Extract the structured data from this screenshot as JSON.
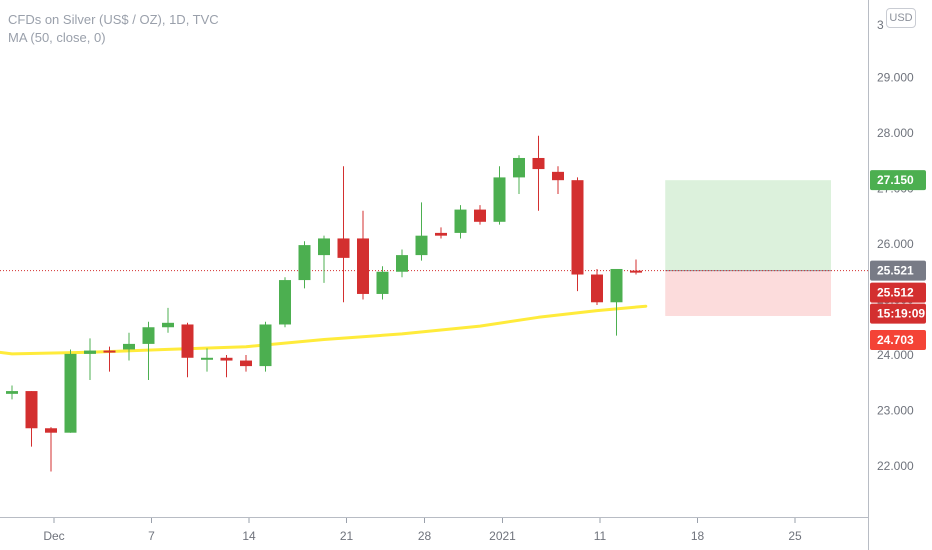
{
  "legend": {
    "title": "CFDs on Silver (US$ / OZ), 1D, TVC",
    "indicator": "MA (50, close, 0)"
  },
  "currency_badge": "USD",
  "colors": {
    "up": "#4caf50",
    "down": "#d32f2f",
    "ma": "#ffeb3b",
    "profit_zone": "#dcf1dc",
    "loss_zone": "#fcdcdc",
    "axis": "#9aa0ab"
  },
  "chart_data": {
    "type": "candlestick",
    "title": "CFDs on Silver (US$ / OZ), 1D, TVC",
    "ylim": [
      21.0,
      30.2
    ],
    "yticks": [
      {
        "value": 29.0,
        "label": "29.000"
      },
      {
        "value": 28.0,
        "label": "28.000"
      },
      {
        "value": 27.0,
        "label": "27.000"
      },
      {
        "value": 26.0,
        "label": "26.000"
      },
      {
        "value": 25.0,
        "label": "25.000"
      },
      {
        "value": 24.0,
        "label": "24.000"
      },
      {
        "value": 23.0,
        "label": "23.000"
      },
      {
        "value": 22.0,
        "label": "22.000"
      }
    ],
    "top_tick_partial": "3",
    "xticks": [
      {
        "index": 2,
        "label": "Dec"
      },
      {
        "index": 7,
        "label": "7"
      },
      {
        "index": 12,
        "label": "14"
      },
      {
        "index": 17,
        "label": "21"
      },
      {
        "index": 21,
        "label": "28"
      },
      {
        "index": 25,
        "label": "2021"
      },
      {
        "index": 30,
        "label": "11"
      },
      {
        "index": 35,
        "label": "18"
      },
      {
        "index": 40,
        "label": "25"
      }
    ],
    "candles": [
      {
        "o": 23.3,
        "h": 23.45,
        "l": 23.2,
        "c": 23.35
      },
      {
        "o": 23.35,
        "h": 23.35,
        "l": 22.35,
        "c": 22.68
      },
      {
        "o": 22.68,
        "h": 22.7,
        "l": 21.9,
        "c": 22.6
      },
      {
        "o": 22.6,
        "h": 24.1,
        "l": 22.6,
        "c": 24.02
      },
      {
        "o": 24.02,
        "h": 24.3,
        "l": 23.55,
        "c": 24.08
      },
      {
        "o": 24.08,
        "h": 24.15,
        "l": 23.7,
        "c": 24.05
      },
      {
        "o": 24.1,
        "h": 24.4,
        "l": 23.9,
        "c": 24.2
      },
      {
        "o": 24.2,
        "h": 24.6,
        "l": 23.55,
        "c": 24.5
      },
      {
        "o": 24.5,
        "h": 24.85,
        "l": 24.4,
        "c": 24.58
      },
      {
        "o": 24.55,
        "h": 24.58,
        "l": 23.6,
        "c": 23.95
      },
      {
        "o": 23.95,
        "h": 24.12,
        "l": 23.7,
        "c": 23.95
      },
      {
        "o": 23.95,
        "h": 24.0,
        "l": 23.6,
        "c": 23.9
      },
      {
        "o": 23.9,
        "h": 24.0,
        "l": 23.7,
        "c": 23.8
      },
      {
        "o": 23.8,
        "h": 24.6,
        "l": 23.7,
        "c": 24.55
      },
      {
        "o": 24.55,
        "h": 25.4,
        "l": 24.5,
        "c": 25.35
      },
      {
        "o": 25.35,
        "h": 26.05,
        "l": 25.2,
        "c": 25.98
      },
      {
        "o": 25.8,
        "h": 26.15,
        "l": 25.3,
        "c": 26.1
      },
      {
        "o": 26.1,
        "h": 27.4,
        "l": 24.95,
        "c": 25.75
      },
      {
        "o": 26.1,
        "h": 26.6,
        "l": 25.0,
        "c": 25.1
      },
      {
        "o": 25.1,
        "h": 25.6,
        "l": 25.0,
        "c": 25.5
      },
      {
        "o": 25.5,
        "h": 25.9,
        "l": 25.4,
        "c": 25.8
      },
      {
        "o": 25.8,
        "h": 26.75,
        "l": 25.7,
        "c": 26.15
      },
      {
        "o": 26.2,
        "h": 26.3,
        "l": 26.1,
        "c": 26.15
      },
      {
        "o": 26.2,
        "h": 26.7,
        "l": 26.1,
        "c": 26.62
      },
      {
        "o": 26.62,
        "h": 26.7,
        "l": 26.35,
        "c": 26.4
      },
      {
        "o": 26.4,
        "h": 27.4,
        "l": 26.35,
        "c": 27.2
      },
      {
        "o": 27.2,
        "h": 27.6,
        "l": 26.9,
        "c": 27.55
      },
      {
        "o": 27.55,
        "h": 27.95,
        "l": 26.6,
        "c": 27.35
      },
      {
        "o": 27.3,
        "h": 27.4,
        "l": 26.9,
        "c": 27.15
      },
      {
        "o": 27.15,
        "h": 27.2,
        "l": 25.15,
        "c": 25.45
      },
      {
        "o": 25.45,
        "h": 25.55,
        "l": 24.9,
        "c": 24.95
      },
      {
        "o": 24.95,
        "h": 25.55,
        "l": 24.35,
        "c": 25.55
      },
      {
        "o": 25.52,
        "h": 25.72,
        "l": 25.45,
        "c": 25.5
      }
    ],
    "moving_average": {
      "name": "MA (50, close, 0)",
      "points": [
        {
          "index": -3,
          "value": 24.15
        },
        {
          "index": 0,
          "value": 24.02
        },
        {
          "index": 4,
          "value": 24.05
        },
        {
          "index": 8,
          "value": 24.1
        },
        {
          "index": 12,
          "value": 24.15
        },
        {
          "index": 16,
          "value": 24.28
        },
        {
          "index": 20,
          "value": 24.38
        },
        {
          "index": 24,
          "value": 24.52
        },
        {
          "index": 27,
          "value": 24.68
        },
        {
          "index": 30,
          "value": 24.8
        },
        {
          "index": 32.5,
          "value": 24.88
        }
      ]
    },
    "position": {
      "start_index": 33.5,
      "end_index": 42,
      "entry": 25.521,
      "target": 27.15,
      "stop": 24.703
    },
    "price_labels": [
      {
        "value": 27.15,
        "label": "27.150",
        "color": "#4caf50"
      },
      {
        "value": 25.521,
        "label": "25.521",
        "color": "#787b86"
      },
      {
        "value": 25.512,
        "label": "25.512",
        "color": "#d32f2f"
      },
      {
        "value": null,
        "label": "15:19:09",
        "color": "#d32f2f"
      },
      {
        "value": 24.703,
        "label": "24.703",
        "color": "#f44336"
      }
    ],
    "grid": false
  }
}
